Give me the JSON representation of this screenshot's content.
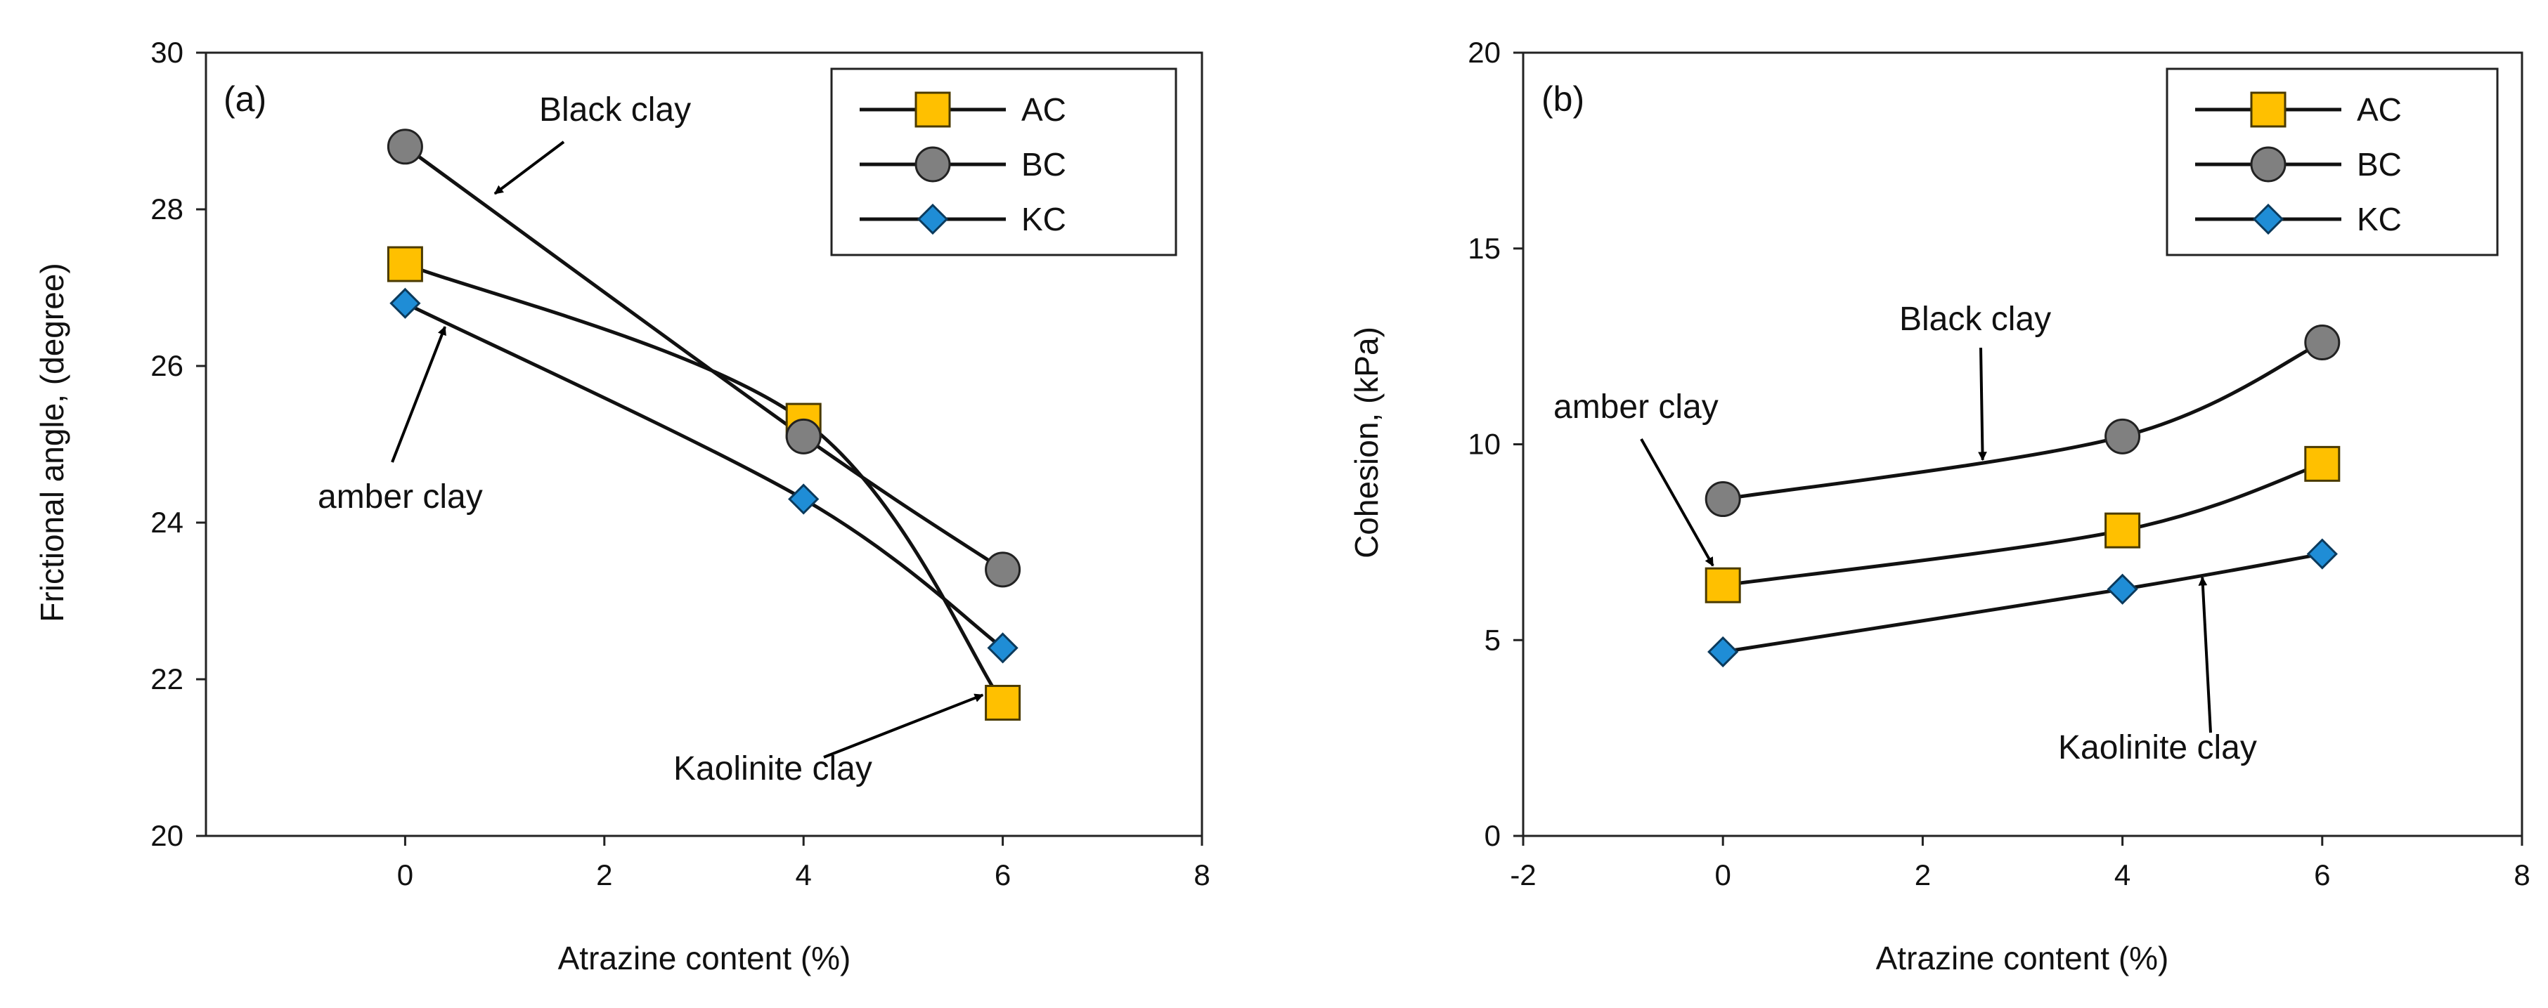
{
  "chart_data": [
    {
      "type": "line",
      "panel_label": "(a)",
      "xlabel": "Atrazine content (%)",
      "ylabel": "Frictional angle, (degree)",
      "xlim": [
        -2,
        8
      ],
      "ylim": [
        20,
        30
      ],
      "xticks": [
        0,
        2,
        4,
        6,
        8
      ],
      "yticks": [
        20,
        22,
        24,
        26,
        28,
        30
      ],
      "legend_position": "top-right",
      "series": [
        {
          "name": "AC",
          "color": "#FFC000",
          "marker": "square",
          "x": [
            0,
            4,
            6
          ],
          "y": [
            27.3,
            25.3,
            21.7
          ]
        },
        {
          "name": "BC",
          "color": "#808080",
          "marker": "circle",
          "x": [
            0,
            4,
            6
          ],
          "y": [
            28.8,
            25.1,
            23.4
          ]
        },
        {
          "name": "KC",
          "color": "#1F8DD6",
          "marker": "diamond",
          "x": [
            0,
            4,
            6
          ],
          "y": [
            26.8,
            24.3,
            22.4
          ]
        }
      ],
      "annotations": [
        {
          "text": "Black clay",
          "points_to": {
            "x": 0.9,
            "y": 28.2
          }
        },
        {
          "text": "amber clay",
          "points_to": {
            "x": 0.4,
            "y": 26.5
          }
        },
        {
          "text": "Kaolinite clay",
          "points_to": {
            "x": 5.8,
            "y": 21.8
          }
        }
      ]
    },
    {
      "type": "line",
      "panel_label": "(b)",
      "xlabel": "Atrazine content (%)",
      "ylabel": "Cohesion, (kPa)",
      "xlim": [
        -2,
        8
      ],
      "ylim": [
        0,
        20
      ],
      "xticks": [
        -2,
        0,
        2,
        4,
        6,
        8
      ],
      "yticks": [
        0,
        5,
        10,
        15,
        20
      ],
      "legend_position": "top-right",
      "series": [
        {
          "name": "AC",
          "color": "#FFC000",
          "marker": "square",
          "x": [
            0,
            4,
            6
          ],
          "y": [
            6.4,
            7.8,
            9.5
          ]
        },
        {
          "name": "BC",
          "color": "#808080",
          "marker": "circle",
          "x": [
            0,
            4,
            6
          ],
          "y": [
            8.6,
            10.2,
            12.6
          ]
        },
        {
          "name": "KC",
          "color": "#1F8DD6",
          "marker": "diamond",
          "x": [
            0,
            4,
            6
          ],
          "y": [
            4.7,
            6.3,
            7.2
          ]
        }
      ],
      "annotations": [
        {
          "text": "Black clay",
          "points_to": {
            "x": 2.6,
            "y": 9.6
          }
        },
        {
          "text": "amber clay",
          "points_to": {
            "x": -0.1,
            "y": 6.9
          }
        },
        {
          "text": "Kaolinite clay",
          "points_to": {
            "x": 4.8,
            "y": 6.6
          }
        }
      ]
    }
  ]
}
